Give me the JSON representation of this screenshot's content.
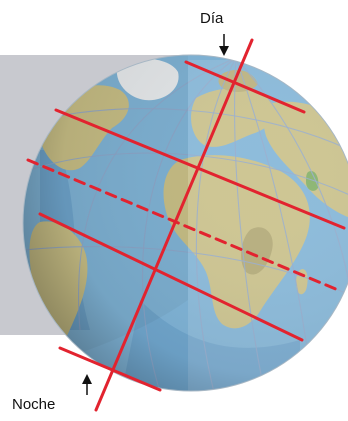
{
  "labels": {
    "day": "Día",
    "night": "Noche"
  },
  "colors": {
    "background": "#ffffff",
    "night_side_shade": "#c8c9cf",
    "ocean": "#7fb3d6",
    "ocean_deep": "#5f97c4",
    "land": "#c8bf86",
    "land_dark": "#9e9462",
    "greenland": "#e9ecee",
    "vegetation": "#7fae62",
    "graticule": "#8fa6c9",
    "latitude_lines": "#e2232f",
    "arrow": "#111111"
  },
  "icons": {
    "day_pointer": "arrow-down-icon",
    "night_pointer": "arrow-up-icon"
  }
}
